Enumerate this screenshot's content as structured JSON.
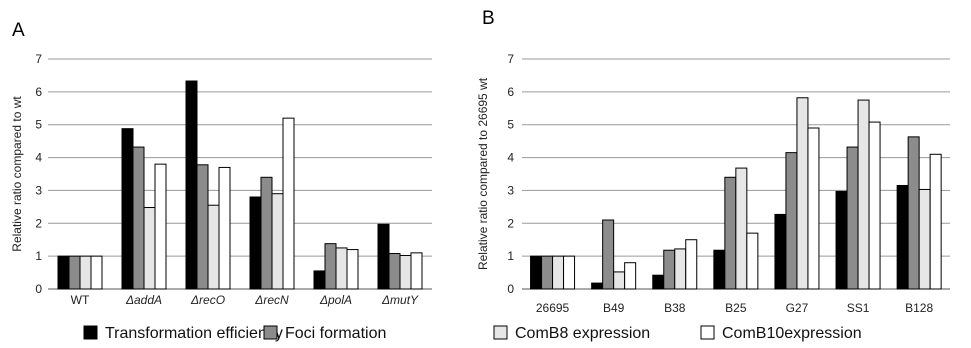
{
  "chart_data": [
    {
      "panel": "A",
      "type": "bar",
      "ylabel": "Relative ratio compared to wt",
      "ylim": [
        0,
        7
      ],
      "yticks": [
        "0",
        "1",
        "2",
        "3",
        "4",
        "5",
        "6",
        "7"
      ],
      "grid": "horizontal",
      "categories": [
        "WT",
        "ΔaddA",
        "ΔrecO",
        "ΔrecN",
        "ΔpolA",
        "ΔmutY"
      ],
      "category_italic": [
        false,
        true,
        true,
        true,
        true,
        true
      ],
      "series": [
        {
          "name": "Transformation efficiency",
          "values": [
            1,
            4.88,
            6.33,
            2.8,
            0.55,
            1.97
          ]
        },
        {
          "name": "Foci formation",
          "values": [
            1,
            4.32,
            3.78,
            3.4,
            1.38,
            1.08
          ]
        },
        {
          "name": "ComB8 expression",
          "values": [
            1,
            2.48,
            2.55,
            2.9,
            1.25,
            1.02
          ]
        },
        {
          "name": "ComB10expression",
          "values": [
            1,
            3.8,
            3.7,
            5.2,
            1.2,
            1.1
          ]
        }
      ]
    },
    {
      "panel": "B",
      "type": "bar",
      "ylabel": "Relative ratio compared to 26695 wt",
      "ylim": [
        0,
        7
      ],
      "yticks": [
        "0",
        "1",
        "2",
        "3",
        "4",
        "5",
        "6",
        "7"
      ],
      "grid": "horizontal",
      "categories": [
        "26695",
        "B49",
        "B38",
        "B25",
        "G27",
        "SS1",
        "B128"
      ],
      "category_italic": [
        false,
        false,
        false,
        false,
        false,
        false,
        false
      ],
      "series": [
        {
          "name": "Transformation efficiency",
          "values": [
            1,
            0.18,
            0.42,
            1.18,
            2.27,
            2.97,
            3.15
          ]
        },
        {
          "name": "Foci formation",
          "values": [
            1,
            2.1,
            1.18,
            3.4,
            4.15,
            4.32,
            4.63
          ]
        },
        {
          "name": "ComB8 expression",
          "values": [
            1,
            0.52,
            1.22,
            3.68,
            5.82,
            5.75,
            3.03
          ]
        },
        {
          "name": "ComB10expression",
          "values": [
            1,
            0.8,
            1.5,
            1.7,
            4.9,
            5.08,
            4.1
          ]
        }
      ]
    }
  ],
  "legend": {
    "position": "bottom",
    "items": [
      {
        "label": "Transformation efficiency",
        "color": "#000000"
      },
      {
        "label": "Foci formation",
        "color": "#8c8c8c"
      },
      {
        "label": "ComB8 expression",
        "color": "#e6e6e6"
      },
      {
        "label": "ComB10expression",
        "color": "#ffffff"
      }
    ]
  },
  "series_colors": [
    "#000000",
    "#8c8c8c",
    "#e6e6e6",
    "#ffffff"
  ]
}
